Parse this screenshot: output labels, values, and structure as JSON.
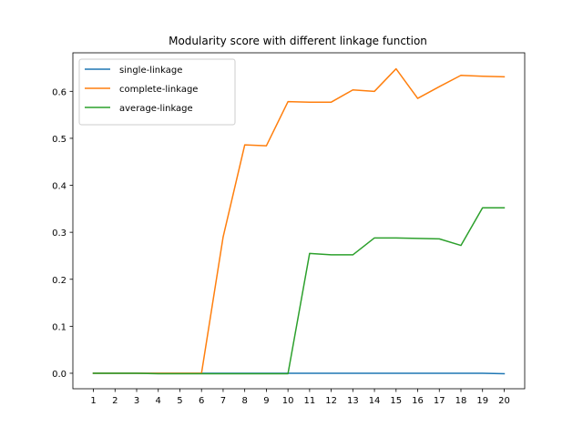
{
  "chart_data": {
    "type": "line",
    "title": "Modularity score with different linkage function",
    "xlabel": "",
    "ylabel": "",
    "x": [
      1,
      2,
      3,
      4,
      5,
      6,
      7,
      8,
      9,
      10,
      11,
      12,
      13,
      14,
      15,
      16,
      17,
      18,
      19,
      20
    ],
    "xticks": [
      "1",
      "2",
      "3",
      "4",
      "5",
      "6",
      "7",
      "8",
      "9",
      "10",
      "11",
      "12",
      "13",
      "14",
      "15",
      "16",
      "17",
      "18",
      "19",
      "20"
    ],
    "yticks": [
      0.0,
      0.1,
      0.2,
      0.3,
      0.4,
      0.5,
      0.6
    ],
    "ytick_labels": [
      "0.0",
      "0.1",
      "0.2",
      "0.3",
      "0.4",
      "0.5",
      "0.6"
    ],
    "xlim": [
      0.05,
      20.95
    ],
    "ylim": [
      -0.033,
      0.682
    ],
    "grid": false,
    "legend_position": "top-left",
    "series": [
      {
        "name": "single-linkage",
        "color": "#1f77b4",
        "values": [
          0.0,
          0.0,
          0.0,
          0.0,
          0.0,
          0.0,
          0.0,
          0.0,
          0.0,
          0.0,
          0.0,
          0.0,
          0.0,
          0.0,
          0.0,
          0.0,
          0.0,
          0.0,
          0.0,
          -0.001
        ]
      },
      {
        "name": "complete-linkage",
        "color": "#ff7f0e",
        "values": [
          0.0,
          0.0,
          0.0,
          0.0,
          0.0,
          0.0,
          0.29,
          0.486,
          0.484,
          0.578,
          0.577,
          0.577,
          0.603,
          0.6,
          0.648,
          0.585,
          0.61,
          0.634,
          0.632,
          0.631
        ]
      },
      {
        "name": "average-linkage",
        "color": "#2ca02c",
        "values": [
          0.0,
          0.0,
          0.0,
          -0.001,
          -0.001,
          -0.001,
          -0.001,
          -0.001,
          -0.001,
          -0.001,
          0.255,
          0.252,
          0.252,
          0.288,
          0.288,
          0.287,
          0.286,
          0.272,
          0.352,
          0.352
        ]
      }
    ]
  }
}
